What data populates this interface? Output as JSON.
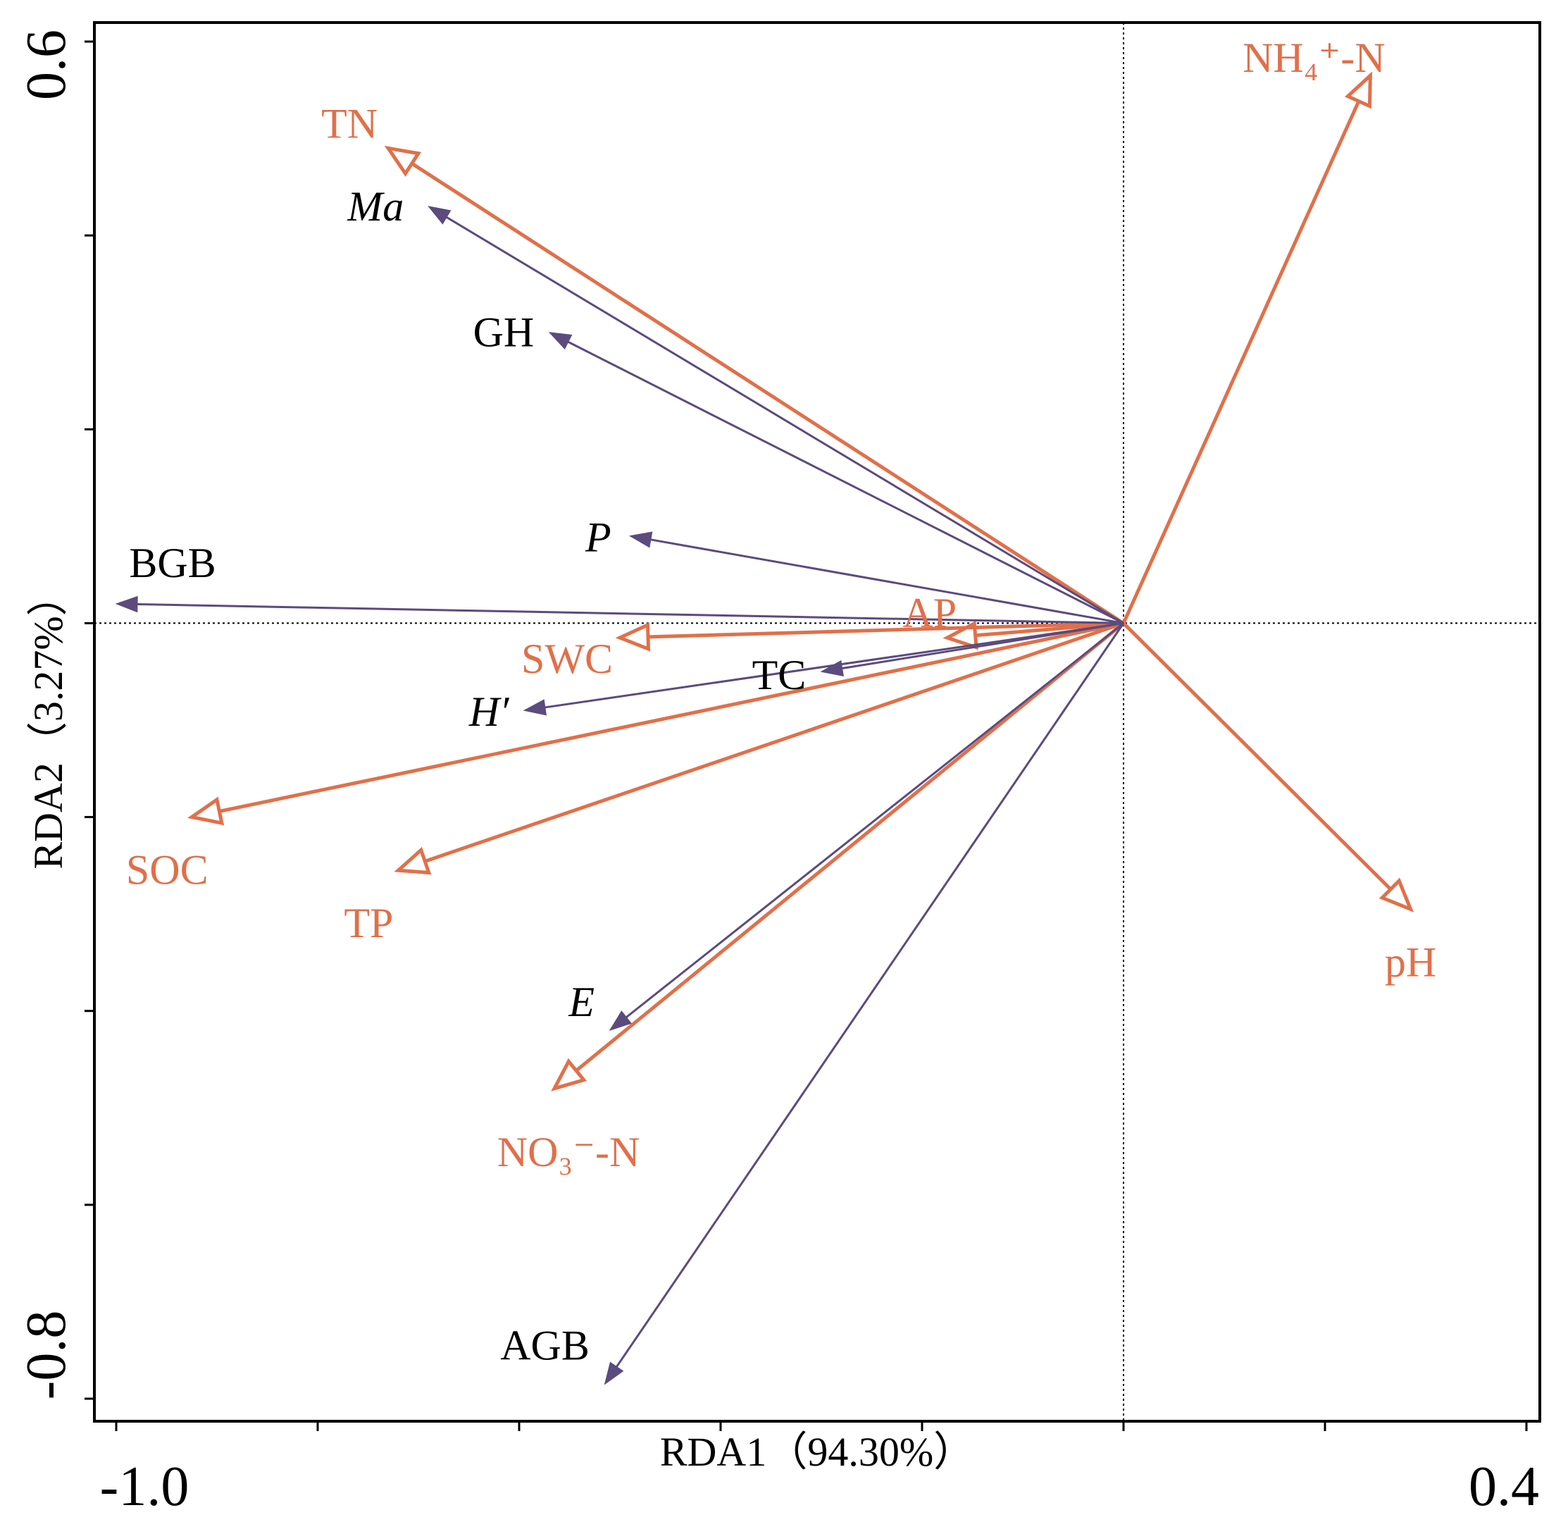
{
  "chart_data": {
    "type": "biplot",
    "xlabel": "RDA1（94.30%）",
    "ylabel": "RDA2（3.27%）",
    "xlim": [
      -1.0,
      0.4
    ],
    "ylim": [
      -0.8,
      0.6
    ],
    "x_tick_labels": [
      {
        "value": -1.0,
        "label": "-1.0"
      },
      {
        "value": 0.4,
        "label": "0.4"
      }
    ],
    "y_tick_labels": [
      {
        "value": 0.6,
        "label": "0.6"
      },
      {
        "value": -0.8,
        "label": "-0.8"
      }
    ],
    "x_minor_ticks": [
      -1.0,
      -0.8,
      -0.6,
      -0.4,
      -0.2,
      0.0,
      0.2,
      0.4
    ],
    "y_minor_ticks": [
      0.6,
      0.4,
      0.2,
      0.0,
      -0.2,
      -0.4,
      -0.6,
      -0.8
    ],
    "reference_lines": {
      "x": 0,
      "y": 0,
      "style": "dotted"
    },
    "colors": {
      "environmental": "#e0704a",
      "response": "#5b4b7e",
      "axis": "#000000"
    },
    "series": [
      {
        "name": "environmental",
        "arrow": "open",
        "vectors": [
          {
            "label": "TN",
            "x": -0.73,
            "y": 0.49
          },
          {
            "label": "NH₄⁺-N",
            "x": 0.245,
            "y": 0.565
          },
          {
            "label": "AP",
            "x": -0.175,
            "y": -0.015
          },
          {
            "label": "SWC",
            "x": -0.5,
            "y": -0.015
          },
          {
            "label": "SOC",
            "x": -0.925,
            "y": -0.2
          },
          {
            "label": "TP",
            "x": -0.72,
            "y": -0.255
          },
          {
            "label": "NO₃⁻-N",
            "x": -0.565,
            "y": -0.48
          },
          {
            "label": "pH",
            "x": 0.285,
            "y": -0.295
          }
        ]
      },
      {
        "name": "response",
        "arrow": "filled",
        "vectors": [
          {
            "label": "Ma",
            "x": -0.69,
            "y": 0.43,
            "italic": true
          },
          {
            "label": "GH",
            "x": -0.57,
            "y": 0.3
          },
          {
            "label": "P",
            "x": -0.49,
            "y": 0.09,
            "italic": true
          },
          {
            "label": "BGB",
            "x": -1.0,
            "y": 0.02
          },
          {
            "label": "TC",
            "x": -0.3,
            "y": -0.05
          },
          {
            "label": "H′",
            "x": -0.595,
            "y": -0.09,
            "italic": true
          },
          {
            "label": "E",
            "x": -0.51,
            "y": -0.42,
            "italic": true
          },
          {
            "label": "AGB",
            "x": -0.515,
            "y": -0.785
          }
        ]
      }
    ]
  }
}
